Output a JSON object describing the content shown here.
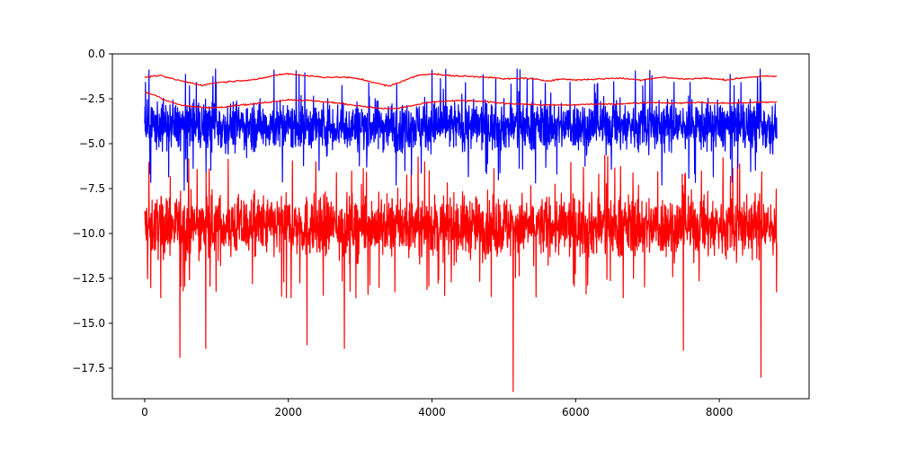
{
  "chart_data": {
    "type": "line",
    "title": "",
    "xlabel": "",
    "ylabel": "",
    "xlim": [
      -450,
      9250
    ],
    "ylim": [
      -19.2,
      0
    ],
    "grid": false,
    "legend": "none",
    "x_ticks": [
      0,
      2000,
      4000,
      6000,
      8000
    ],
    "x_tick_labels": [
      "0",
      "2000",
      "4000",
      "6000",
      "8000"
    ],
    "y_ticks": [
      0,
      -2.5,
      -5,
      -7.5,
      -10,
      -12.5,
      -15,
      -17.5
    ],
    "y_tick_labels": [
      "0.0",
      "−2.5",
      "−5.0",
      "−7.5",
      "−10.0",
      "−12.5",
      "−15.0",
      "−17.5"
    ],
    "x_extent": [
      0,
      8800
    ],
    "series": [
      {
        "color": "#ff0000",
        "style": "noisy band",
        "typical_range": [
          -12.5,
          -7.5
        ],
        "center": -9.6,
        "extreme_lows": [
          [
            490,
            -16.9
          ],
          [
            850,
            -16.4
          ],
          [
            2260,
            -16.2
          ],
          [
            2780,
            -16.4
          ],
          [
            5130,
            -18.8
          ],
          [
            7500,
            -16.5
          ],
          [
            8580,
            -18.0
          ]
        ]
      },
      {
        "color": "#0000ff",
        "style": "noisy band",
        "typical_range": [
          -6.0,
          -2.0
        ],
        "center": -4.0,
        "extreme_highs": [
          [
            60,
            -0.9
          ],
          [
            1800,
            -0.9
          ],
          [
            4000,
            -0.9
          ]
        ],
        "extreme_lows": [
          [
            550,
            -7.6
          ],
          [
            3500,
            -7.3
          ],
          [
            7200,
            -7.3
          ]
        ]
      },
      {
        "color": "#ff0000",
        "style": "smooth upper envelope",
        "x": [
          0,
          200,
          500,
          800,
          1000,
          1300,
          1600,
          1800,
          2000,
          2200,
          2500,
          2800,
          3000,
          3200,
          3400,
          3600,
          3800,
          4000,
          4200,
          4500,
          4800,
          5000,
          5300,
          5600,
          5800,
          6000,
          6300,
          6600,
          6900,
          7200,
          7500,
          7800,
          8100,
          8400,
          8600,
          8800
        ],
        "y": [
          -1.3,
          -1.2,
          -1.5,
          -1.75,
          -1.6,
          -1.5,
          -1.4,
          -1.2,
          -1.1,
          -1.2,
          -1.3,
          -1.3,
          -1.4,
          -1.6,
          -1.8,
          -1.5,
          -1.2,
          -1.1,
          -1.2,
          -1.25,
          -1.3,
          -1.4,
          -1.35,
          -1.5,
          -1.4,
          -1.45,
          -1.4,
          -1.35,
          -1.45,
          -1.3,
          -1.4,
          -1.35,
          -1.45,
          -1.3,
          -1.25,
          -1.25
        ]
      },
      {
        "color": "#ff0000",
        "style": "smooth lower envelope",
        "x": [
          0,
          150,
          300,
          500,
          700,
          900,
          1100,
          1300,
          1500,
          1700,
          2000,
          2300,
          2600,
          2900,
          3100,
          3300,
          3500,
          3700,
          3900,
          4100,
          4400,
          4700,
          5000,
          5300,
          5600,
          5900,
          6200,
          6500,
          6800,
          7100,
          7400,
          7700,
          8000,
          8300,
          8600,
          8800
        ],
        "y": [
          -2.15,
          -2.3,
          -2.6,
          -2.85,
          -2.95,
          -3.0,
          -2.95,
          -2.85,
          -2.8,
          -2.7,
          -2.55,
          -2.6,
          -2.7,
          -2.85,
          -2.95,
          -3.05,
          -3.05,
          -2.9,
          -2.75,
          -2.65,
          -2.6,
          -2.65,
          -2.75,
          -2.8,
          -2.85,
          -2.85,
          -2.8,
          -2.8,
          -2.75,
          -2.7,
          -2.75,
          -2.7,
          -2.75,
          -2.72,
          -2.7,
          -2.68
        ]
      }
    ]
  }
}
